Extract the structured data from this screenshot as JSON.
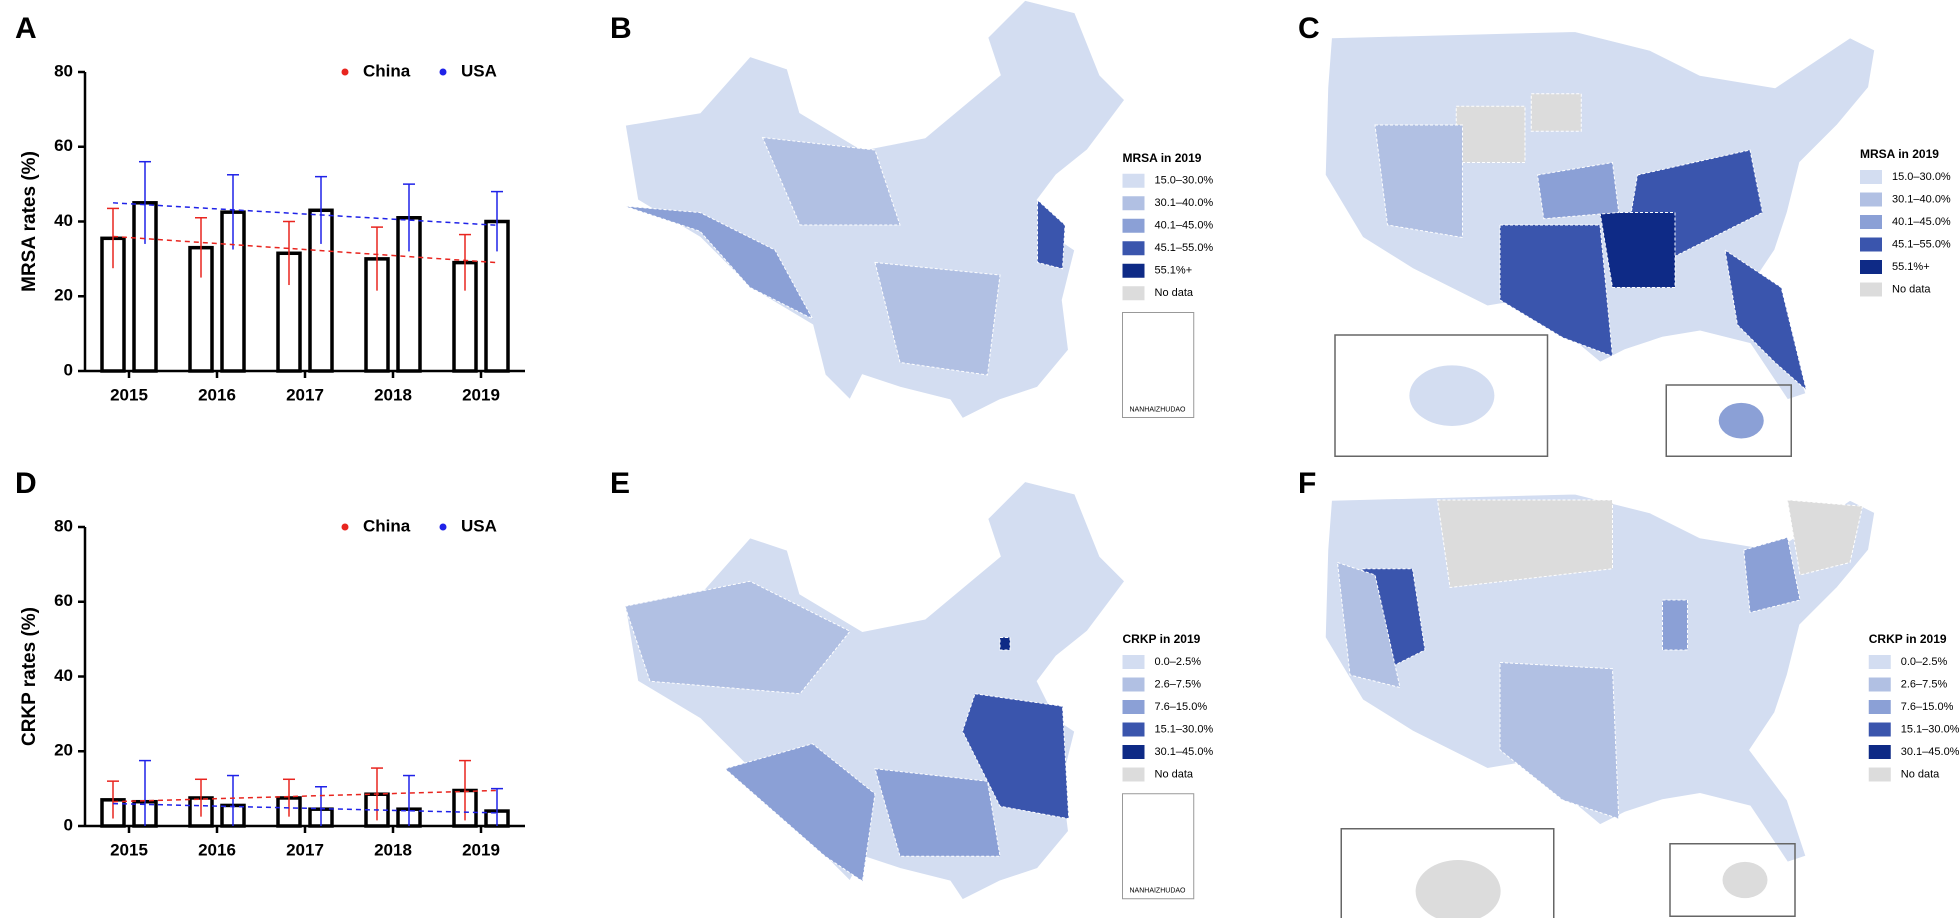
{
  "chart_data": [
    {
      "type": "bar",
      "panel": "A",
      "ylabel": "MRSA rates (%)",
      "categories": [
        "2015",
        "2016",
        "2017",
        "2018",
        "2019"
      ],
      "ylim": [
        0,
        80
      ],
      "yticks": [
        0,
        20,
        40,
        60,
        80
      ],
      "legend": "top-right",
      "series": [
        {
          "name": "China",
          "color": "#e8251f",
          "values": [
            35.5,
            33,
            31.5,
            30,
            29
          ],
          "errors": [
            8,
            8,
            8.5,
            8.5,
            7.5
          ],
          "trend": [
            36,
            29
          ]
        },
        {
          "name": "USA",
          "color": "#1f22e8",
          "values": [
            45,
            42.5,
            43,
            41,
            40
          ],
          "errors": [
            11,
            10,
            9,
            9,
            8
          ],
          "trend": [
            45,
            39
          ]
        }
      ]
    },
    {
      "type": "map",
      "panel": "B",
      "region": "china",
      "legend_title": "MRSA in 2019",
      "inset_label": "NANHAIZHUDAO",
      "legend": [
        {
          "label": "15.0–30.0%",
          "color": "#d3ddf1"
        },
        {
          "label": "30.1–40.0%",
          "color": "#b1c0e3"
        },
        {
          "label": "40.1–45.0%",
          "color": "#8ba0d6"
        },
        {
          "label": "45.1–55.0%",
          "color": "#3a55ad"
        },
        {
          "label": "55.1%+",
          "color": "#0e2a86"
        },
        {
          "label": "No data",
          "color": "#dcdcdc"
        }
      ]
    },
    {
      "type": "map",
      "panel": "C",
      "region": "usa",
      "legend_title": "MRSA in 2019",
      "legend": [
        {
          "label": "15.0–30.0%",
          "color": "#d3ddf1"
        },
        {
          "label": "30.1–40.0%",
          "color": "#b1c0e3"
        },
        {
          "label": "40.1–45.0%",
          "color": "#8ba0d6"
        },
        {
          "label": "45.1–55.0%",
          "color": "#3a55ad"
        },
        {
          "label": "55.1%+",
          "color": "#0e2a86"
        },
        {
          "label": "No data",
          "color": "#dcdcdc"
        }
      ]
    },
    {
      "type": "bar",
      "panel": "D",
      "ylabel": "CRKP rates (%)",
      "categories": [
        "2015",
        "2016",
        "2017",
        "2018",
        "2019"
      ],
      "ylim": [
        0,
        80
      ],
      "yticks": [
        0,
        20,
        40,
        60,
        80
      ],
      "legend": "top-right",
      "series": [
        {
          "name": "China",
          "color": "#e8251f",
          "values": [
            7,
            7.5,
            7.5,
            8.5,
            9.5
          ],
          "errors": [
            5,
            5,
            5,
            7,
            8
          ],
          "trend": [
            6.5,
            9.5
          ]
        },
        {
          "name": "USA",
          "color": "#1f22e8",
          "values": [
            6.5,
            5.5,
            4.5,
            4.5,
            4
          ],
          "errors": [
            11,
            8,
            6,
            9,
            6
          ],
          "trend": [
            6,
            3.5
          ]
        }
      ]
    },
    {
      "type": "map",
      "panel": "E",
      "region": "china",
      "legend_title": "CRKP in 2019",
      "inset_label": "NANHAIZHUDAO",
      "legend": [
        {
          "label": "0.0–2.5%",
          "color": "#d3ddf1"
        },
        {
          "label": "2.6–7.5%",
          "color": "#b1c0e3"
        },
        {
          "label": "7.6–15.0%",
          "color": "#8ba0d6"
        },
        {
          "label": "15.1–30.0%",
          "color": "#3a55ad"
        },
        {
          "label": "30.1–45.0%",
          "color": "#0e2a86"
        },
        {
          "label": "No data",
          "color": "#dcdcdc"
        }
      ]
    },
    {
      "type": "map",
      "panel": "F",
      "region": "usa",
      "legend_title": "CRKP in 2019",
      "legend": [
        {
          "label": "0.0–2.5%",
          "color": "#d3ddf1"
        },
        {
          "label": "2.6–7.5%",
          "color": "#b1c0e3"
        },
        {
          "label": "7.6–15.0%",
          "color": "#8ba0d6"
        },
        {
          "label": "15.1–30.0%",
          "color": "#3a55ad"
        },
        {
          "label": "30.1–45.0%",
          "color": "#0e2a86"
        },
        {
          "label": "No data",
          "color": "#dcdcdc"
        }
      ]
    }
  ]
}
